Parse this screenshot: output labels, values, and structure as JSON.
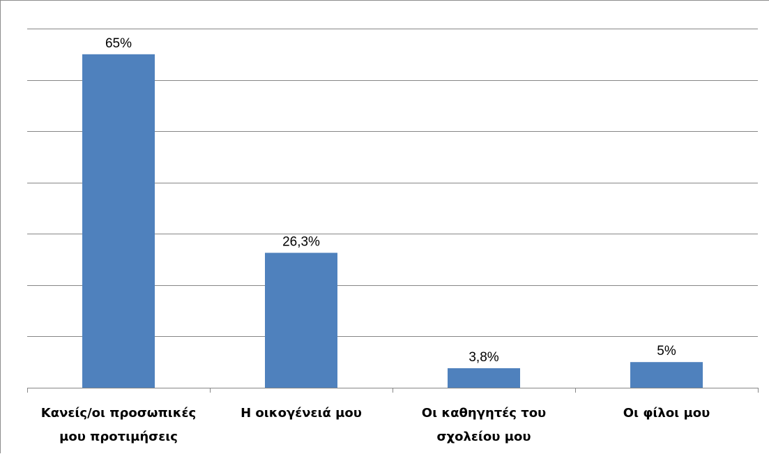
{
  "chart_data": {
    "type": "bar",
    "categories": [
      [
        "Κανείς/οι προσωπικές",
        "μου προτιμήσεις"
      ],
      [
        "Η οικογένειά μου"
      ],
      [
        "Οι καθηγητές του",
        "σχολείου μου"
      ],
      [
        "Οι φίλοι μου"
      ]
    ],
    "values": [
      65,
      26.3,
      3.8,
      5
    ],
    "value_labels": [
      "65%",
      "26,3%",
      "3,8%",
      "5%"
    ],
    "ylim": [
      0,
      70
    ],
    "ytick_step": 10,
    "grid": true,
    "legend": false,
    "bar_color": "#4f81bd",
    "grid_color": "#868686"
  }
}
